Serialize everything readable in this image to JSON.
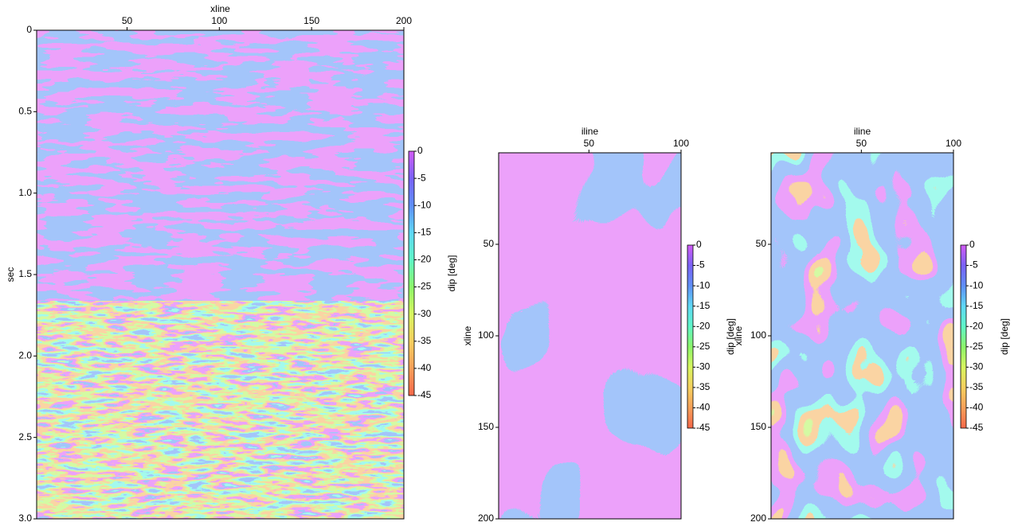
{
  "chart_data": [
    {
      "type": "heatmap",
      "xlabel": "xline",
      "ylabel": "sec",
      "xlim": [
        1,
        200
      ],
      "xticks": [
        50,
        100,
        150,
        200
      ],
      "ylim": [
        0,
        3
      ],
      "yticks": [
        0,
        0.5,
        {
          "value": 1,
          "label": "1.0"
        },
        1.5,
        {
          "value": 2,
          "label": "2.0"
        },
        2.5,
        {
          "value": 3,
          "label": "3.0"
        }
      ],
      "colorbar": {
        "label": "dip [deg]",
        "lim": [
          -45,
          0
        ],
        "ticks": [
          0,
          -5,
          -10,
          -15,
          -20,
          -25,
          -30,
          -35,
          -40,
          -45
        ],
        "colors": [
          "#d25cf5",
          "#7a62f5",
          "#5f8ff5",
          "#5fd8f5",
          "#5ff5c8",
          "#8cf56a",
          "#d8f55f",
          "#f5d05f",
          "#f5a05a",
          "#f5684a"
        ]
      }
    },
    {
      "type": "heatmap",
      "xlabel": "iline",
      "ylabel": "xline",
      "xlim": [
        1,
        100
      ],
      "xticks": [
        50,
        100
      ],
      "ylim": [
        0,
        200
      ],
      "yticks": [
        50,
        100,
        150,
        200
      ],
      "colorbar": {
        "label": "dip [deg]",
        "lim": [
          -45,
          0
        ],
        "ticks": [
          0,
          -5,
          -10,
          -15,
          -20,
          -25,
          -30,
          -35,
          -40,
          -45
        ],
        "colors": [
          "#d25cf5",
          "#7a62f5",
          "#5f8ff5",
          "#5fd8f5",
          "#5ff5c8",
          "#8cf56a",
          "#d8f55f",
          "#f5d05f",
          "#f5a05a",
          "#f5684a"
        ]
      }
    },
    {
      "type": "heatmap",
      "xlabel": "iline",
      "ylabel": "xline",
      "xlim": [
        1,
        100
      ],
      "xticks": [
        50,
        100
      ],
      "ylim": [
        0,
        200
      ],
      "yticks": [
        50,
        100,
        150,
        200
      ],
      "colorbar": {
        "label": "dip [deg]",
        "lim": [
          -45,
          0
        ],
        "ticks": [
          0,
          -5,
          -10,
          -15,
          -20,
          -25,
          -30,
          -35,
          -40,
          -45
        ],
        "colors": [
          "#d25cf5",
          "#7a62f5",
          "#5f8ff5",
          "#5fd8f5",
          "#5ff5c8",
          "#8cf56a",
          "#d8f55f",
          "#f5d05f",
          "#f5a05a",
          "#f5684a"
        ]
      }
    }
  ]
}
